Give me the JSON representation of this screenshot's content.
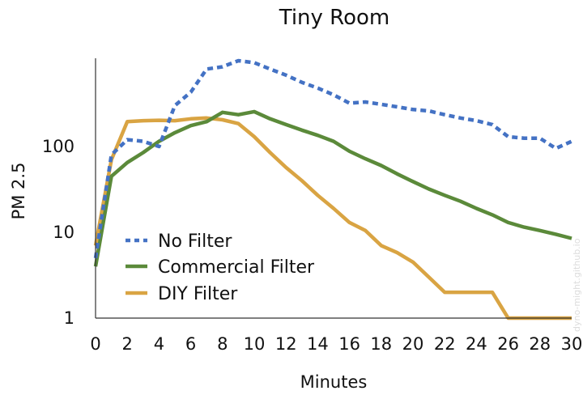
{
  "chart_data": {
    "type": "line",
    "title": "Tiny Room",
    "xlabel": "Minutes",
    "ylabel": "PM 2.5",
    "xlim": [
      0,
      30
    ],
    "ylim": [
      1,
      1000
    ],
    "y_scale": "log",
    "x_ticks": [
      0,
      2,
      4,
      6,
      8,
      10,
      12,
      14,
      16,
      18,
      20,
      22,
      24,
      26,
      28,
      30
    ],
    "y_ticks": [
      {
        "value": 1,
        "label": "1"
      },
      {
        "value": 10,
        "label": "10"
      },
      {
        "value": 100,
        "label": "100"
      }
    ],
    "grid": false,
    "legend_position": "lower-left",
    "series": [
      {
        "name": "No Filter",
        "color": "#4472c4",
        "style": "dotted",
        "x": [
          0,
          1,
          2,
          3,
          4,
          5,
          6,
          7,
          8,
          9,
          10,
          11,
          12,
          13,
          14,
          15,
          16,
          17,
          18,
          19,
          20,
          21,
          22,
          23,
          24,
          25,
          26,
          27,
          28,
          29,
          30
        ],
        "y": [
          5,
          80,
          120,
          115,
          100,
          300,
          430,
          800,
          850,
          1000,
          950,
          800,
          680,
          560,
          480,
          400,
          320,
          330,
          310,
          290,
          270,
          260,
          235,
          215,
          200,
          180,
          130,
          125,
          125,
          95,
          115
        ]
      },
      {
        "name": "Commercial Filter",
        "color": "#5b8a3a",
        "style": "solid",
        "x": [
          0,
          1,
          2,
          3,
          4,
          5,
          6,
          7,
          8,
          9,
          10,
          11,
          12,
          13,
          14,
          15,
          16,
          17,
          18,
          19,
          20,
          21,
          22,
          23,
          24,
          25,
          26,
          27,
          28,
          29,
          30
        ],
        "y": [
          4,
          45,
          65,
          85,
          115,
          145,
          175,
          195,
          250,
          235,
          255,
          210,
          180,
          155,
          135,
          115,
          88,
          72,
          60,
          48,
          39,
          32,
          27,
          23,
          19,
          16,
          13,
          11.5,
          10.5,
          9.5,
          8.5
        ]
      },
      {
        "name": "DIY Filter",
        "color": "#d9a443",
        "style": "solid",
        "x": [
          0,
          1,
          2,
          3,
          4,
          5,
          6,
          7,
          8,
          9,
          10,
          11,
          12,
          13,
          14,
          15,
          16,
          17,
          18,
          19,
          20,
          21,
          22,
          23,
          24,
          25,
          26,
          27,
          28,
          29,
          30
        ],
        "y": [
          7,
          70,
          195,
          200,
          202,
          200,
          210,
          215,
          205,
          185,
          130,
          85,
          57,
          40,
          27,
          19,
          13,
          10.5,
          7,
          5.8,
          4.5,
          3,
          2,
          2,
          2,
          2,
          1,
          1,
          1,
          1,
          1
        ]
      }
    ]
  },
  "watermark": "dyno-might.github.io"
}
